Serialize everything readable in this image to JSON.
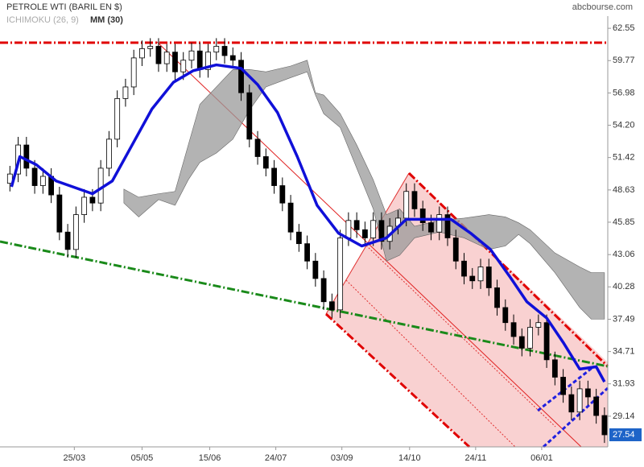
{
  "chart_data": {
    "type": "candlestick",
    "title": "PETROLE WTI (BARIL EN $)",
    "source": "abcbourse.com",
    "x": [
      0,
      5,
      10,
      15,
      20,
      25,
      30,
      35,
      40,
      45,
      50,
      55,
      60,
      65,
      70,
      75,
      80,
      85,
      90,
      95,
      100,
      105,
      110,
      115,
      120,
      125,
      130,
      135,
      140,
      145,
      150,
      155,
      160,
      165,
      170,
      175,
      180,
      185,
      190,
      195,
      200,
      205,
      210,
      215,
      220,
      225,
      230,
      235,
      240,
      245,
      250,
      255,
      260,
      265,
      270,
      275,
      280,
      285,
      290,
      295,
      300,
      305,
      310,
      315,
      320,
      325,
      330,
      335,
      340,
      345,
      350,
      355,
      360
    ],
    "open": [
      49.2,
      50.0,
      52.5,
      50.5,
      49.0,
      49.8,
      48.2,
      45.0,
      43.5,
      46.5,
      48.0,
      47.5,
      50.5,
      53.0,
      56.5,
      57.5,
      60.0,
      60.8,
      61.0,
      59.5,
      60.5,
      58.8,
      59.8,
      60.6,
      59.0,
      60.5,
      61.0,
      60.2,
      59.8,
      57.0,
      53.0,
      51.5,
      50.5,
      49.0,
      47.5,
      45.0,
      44.0,
      42.5,
      41.0,
      39.0,
      38.3,
      44.5,
      46.0,
      45.2,
      44.5,
      46.0,
      44.2,
      45.5,
      46.2,
      48.5,
      47.0,
      45.8,
      45.0,
      46.5,
      44.5,
      42.5,
      41.2,
      40.8,
      42.0,
      40.2,
      38.5,
      37.2,
      36.0,
      35.0,
      36.8,
      37.2,
      34.0,
      32.5,
      31.0,
      29.5,
      31.5,
      30.8,
      29.2
    ],
    "high": [
      50.7,
      53.2,
      53.2,
      51.2,
      50.5,
      50.5,
      48.9,
      45.7,
      47.2,
      48.7,
      48.7,
      51.2,
      53.7,
      57.2,
      58.2,
      60.7,
      61.5,
      61.7,
      61.7,
      61.2,
      61.2,
      60.5,
      61.3,
      61.3,
      61.2,
      61.7,
      61.7,
      60.9,
      60.5,
      57.7,
      53.7,
      52.2,
      51.2,
      49.7,
      48.2,
      45.7,
      44.7,
      43.2,
      41.7,
      39.7,
      45.2,
      46.7,
      46.7,
      45.9,
      46.7,
      46.7,
      46.2,
      46.9,
      49.2,
      49.2,
      47.7,
      46.5,
      47.2,
      47.2,
      45.2,
      43.2,
      41.9,
      42.7,
      42.7,
      40.9,
      39.2,
      37.9,
      36.7,
      37.5,
      37.9,
      37.9,
      34.7,
      33.2,
      31.7,
      32.2,
      32.2,
      31.5,
      29.9
    ],
    "low": [
      48.5,
      49.3,
      49.8,
      48.3,
      48.3,
      47.5,
      44.3,
      42.8,
      42.8,
      45.8,
      46.8,
      46.8,
      49.8,
      52.3,
      55.8,
      56.8,
      59.3,
      60.1,
      58.8,
      58.8,
      58.1,
      58.1,
      59.1,
      58.3,
      58.3,
      59.8,
      59.5,
      59.1,
      56.3,
      52.3,
      50.8,
      49.8,
      48.3,
      46.8,
      44.3,
      43.3,
      41.8,
      40.3,
      38.3,
      37.6,
      37.6,
      43.8,
      44.5,
      43.8,
      43.8,
      43.5,
      43.5,
      44.8,
      45.5,
      46.3,
      45.1,
      44.3,
      44.3,
      43.8,
      41.8,
      40.5,
      40.1,
      40.1,
      39.5,
      37.8,
      36.5,
      35.3,
      34.3,
      34.3,
      36.1,
      33.3,
      31.8,
      30.3,
      28.8,
      28.8,
      30.1,
      28.5,
      26.84
    ],
    "close": [
      50.0,
      52.5,
      50.5,
      49.0,
      49.8,
      48.2,
      45.0,
      43.5,
      46.5,
      48.0,
      47.5,
      50.5,
      53.0,
      56.5,
      57.5,
      60.0,
      60.8,
      61.0,
      59.5,
      60.5,
      58.8,
      59.8,
      60.6,
      59.0,
      60.5,
      61.0,
      60.2,
      59.8,
      57.0,
      53.0,
      51.5,
      50.5,
      49.0,
      47.5,
      45.0,
      44.0,
      42.5,
      41.0,
      39.0,
      38.3,
      44.5,
      46.0,
      45.2,
      44.5,
      46.0,
      44.2,
      45.5,
      46.2,
      48.5,
      47.0,
      45.8,
      45.0,
      46.5,
      44.5,
      42.5,
      41.2,
      40.8,
      42.0,
      40.2,
      38.5,
      37.2,
      36.0,
      35.0,
      36.8,
      37.2,
      34.0,
      32.5,
      31.0,
      29.5,
      31.5,
      30.8,
      29.2,
      27.54
    ],
    "up_color": "#ffffff",
    "down_color": "#000000",
    "series": [
      {
        "name": "MM (30)",
        "color": "#1010d8",
        "x": [
          1,
          6,
          16,
          28,
          42,
          50,
          62,
          74,
          86,
          99,
          111,
          125,
          140,
          150,
          162,
          174,
          186,
          199,
          213,
          228,
          240,
          252,
          267,
          279,
          291,
          303,
          313,
          325,
          335,
          345,
          355,
          360
        ],
        "values": [
          48.9,
          51.5,
          50.8,
          49.4,
          48.7,
          48.3,
          49.4,
          52.5,
          55.6,
          57.9,
          58.9,
          59.4,
          59.1,
          57.7,
          55.3,
          51.5,
          47.3,
          44.9,
          43.8,
          44.5,
          46.1,
          46.1,
          46.1,
          44.9,
          43.5,
          41.1,
          39.0,
          37.6,
          35.5,
          33.2,
          33.4,
          32.1
        ]
      }
    ],
    "cloud": {
      "name": "ICHIMOKU (26, 9)",
      "color": "#999999",
      "x": [
        69,
        78,
        90,
        100,
        108,
        115,
        125,
        135,
        145,
        155,
        170,
        180,
        185,
        190,
        200,
        210,
        220,
        228,
        236,
        245,
        260,
        275,
        290,
        300,
        308,
        315,
        330,
        345,
        352,
        360
      ],
      "upper": [
        48.7,
        48.0,
        48.3,
        48.5,
        52.5,
        56.0,
        57.5,
        59.0,
        59.0,
        58.8,
        59.3,
        59.8,
        57.0,
        56.8,
        55.2,
        52.5,
        49.5,
        46.5,
        47.0,
        45.5,
        46.0,
        46.2,
        46.5,
        46.3,
        45.8,
        45.2,
        43.2,
        42.0,
        41.5,
        41.5
      ],
      "lower": [
        47.5,
        46.3,
        47.8,
        47.3,
        49.5,
        51.0,
        51.8,
        53.0,
        55.5,
        57.5,
        58.3,
        58.8,
        56.8,
        55.2,
        54.0,
        50.5,
        47.0,
        42.5,
        43.0,
        44.5,
        45.0,
        44.5,
        43.5,
        43.8,
        44.8,
        44.0,
        41.5,
        38.5,
        37.5,
        37.5
      ]
    },
    "xlim": [
      -6,
      362
    ],
    "xticks": [
      {
        "value": 39,
        "label": "25/03"
      },
      {
        "value": 80,
        "label": "05/05"
      },
      {
        "value": 121,
        "label": "15/06"
      },
      {
        "value": 161,
        "label": "24/07"
      },
      {
        "value": 201,
        "label": "03/09"
      },
      {
        "value": 242,
        "label": "14/10"
      },
      {
        "value": 282,
        "label": "24/11"
      },
      {
        "value": 322,
        "label": "06/01"
      }
    ],
    "ylim": [
      26.5,
      63.6
    ],
    "yticks": [
      62.55,
      59.77,
      56.98,
      {
        "value": 54.2,
        "label": "54.20"
      },
      51.42,
      48.63,
      45.85,
      43.06,
      40.28,
      37.49,
      34.71,
      31.93,
      29.14
    ]
  }
}
